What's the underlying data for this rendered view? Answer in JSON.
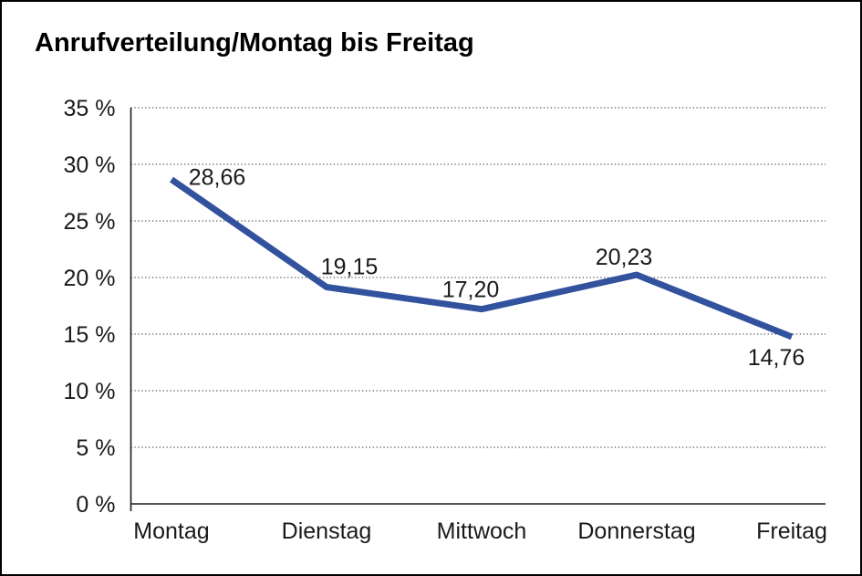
{
  "chart_data": {
    "type": "line",
    "title": "Anrufverteilung/Montag bis Freitag",
    "categories": [
      "Montag",
      "Dienstag",
      "Mittwoch",
      "Donnerstag",
      "Freitag"
    ],
    "series": [
      {
        "name": "Anrufverteilung",
        "values": [
          28.66,
          19.15,
          17.2,
          20.23,
          14.76
        ],
        "value_labels": [
          "28,66",
          "19,15",
          "17,20",
          "20,23",
          "14,76"
        ]
      }
    ],
    "xlabel": "",
    "ylabel": "",
    "ylim": [
      0,
      35
    ],
    "y_step": 5,
    "y_tick_labels": [
      "0 %",
      "5 %",
      "10 %",
      "15 %",
      "20 %",
      "25 %",
      "30 %",
      "35 %"
    ],
    "grid": "horizontal-dotted",
    "legend_position": "none",
    "line_color": "#32529E",
    "axis_color": "#1a1a1a",
    "grid_color": "#555555",
    "background_color": "#ffffff",
    "frame_border_color": "#000000"
  }
}
